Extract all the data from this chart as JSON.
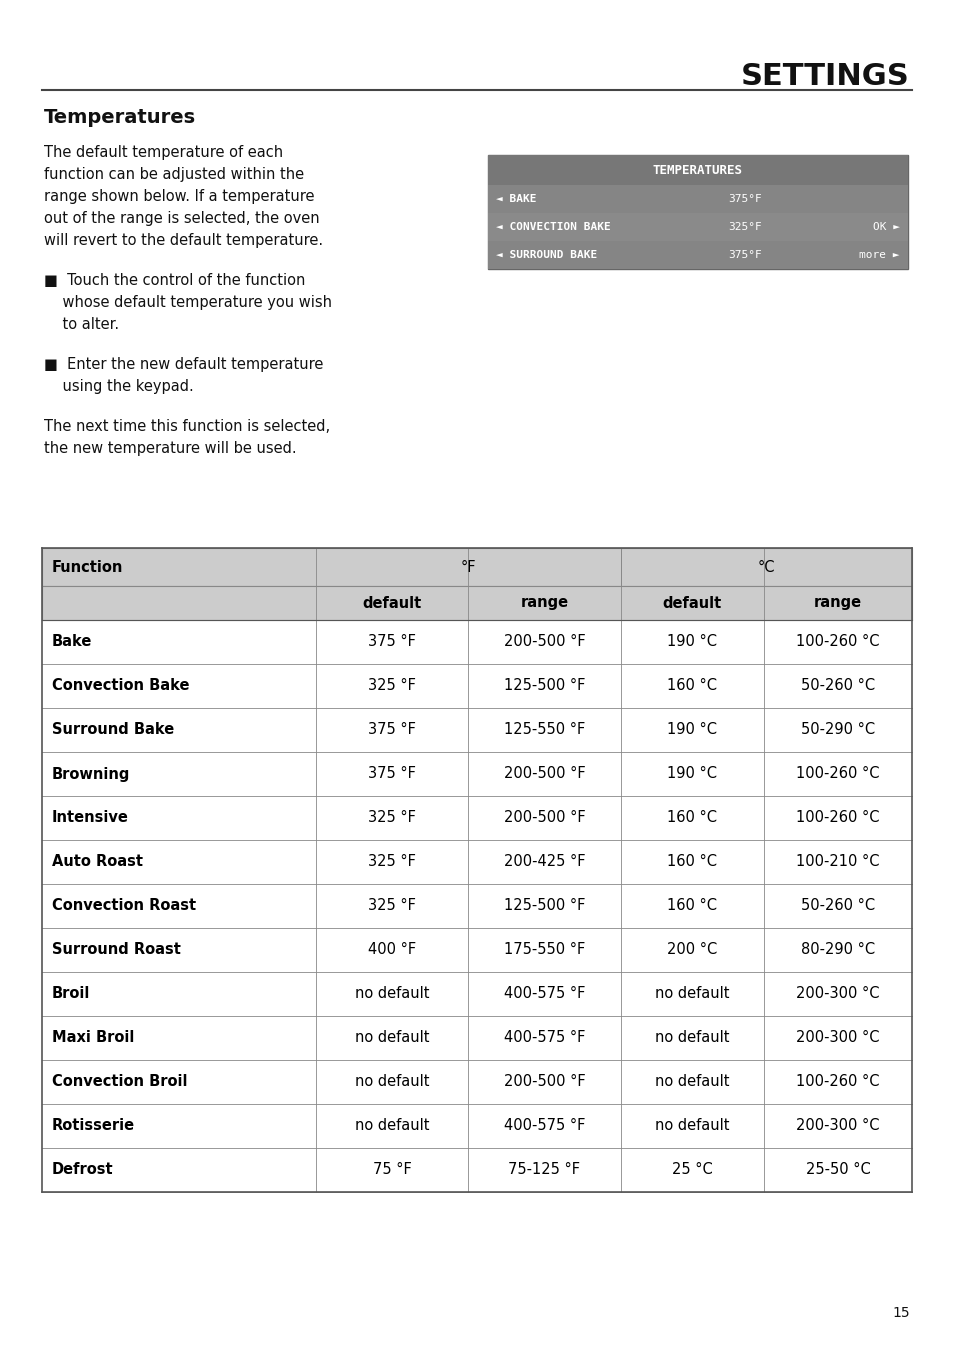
{
  "page_bg": "#ffffff",
  "title": "SETTINGS",
  "section_title": "Temperatures",
  "para1_lines": [
    "The default temperature of each",
    "function can be adjusted within the",
    "range shown below. If a temperature",
    "out of the range is selected, the oven",
    "will revert to the default temperature."
  ],
  "bullet1_lines": [
    "■  Touch the control of the function",
    "    whose default temperature you wish",
    "    to alter."
  ],
  "bullet2_lines": [
    "■  Enter the new default temperature",
    "    using the keypad."
  ],
  "para2_lines": [
    "The next time this function is selected,",
    "the new temperature will be used."
  ],
  "lcd_bg": "#8a8a8a",
  "lcd_title_bg": "#777777",
  "lcd_title": "TEMPERATURES",
  "lcd_rows": [
    [
      "◄ BAKE",
      "375°F",
      ""
    ],
    [
      "◄ CONVECTION BAKE",
      "325°F",
      "OK ►"
    ],
    [
      "◄ SURROUND BAKE",
      "375°F",
      "more ►"
    ]
  ],
  "lcd_row_bgs": [
    "#858585",
    "#8a8a8a",
    "#858585"
  ],
  "table_header_bg": "#cccccc",
  "table_rows": [
    [
      "Bake",
      "375 °F",
      "200-500 °F",
      "190 °C",
      "100-260 °C"
    ],
    [
      "Convection Bake",
      "325 °F",
      "125-500 °F",
      "160 °C",
      "50-260 °C"
    ],
    [
      "Surround Bake",
      "375 °F",
      "125-550 °F",
      "190 °C",
      "50-290 °C"
    ],
    [
      "Browning",
      "375 °F",
      "200-500 °F",
      "190 °C",
      "100-260 °C"
    ],
    [
      "Intensive",
      "325 °F",
      "200-500 °F",
      "160 °C",
      "100-260 °C"
    ],
    [
      "Auto Roast",
      "325 °F",
      "200-425 °F",
      "160 °C",
      "100-210 °C"
    ],
    [
      "Convection Roast",
      "325 °F",
      "125-500 °F",
      "160 °C",
      "50-260 °C"
    ],
    [
      "Surround Roast",
      "400 °F",
      "175-550 °F",
      "200 °C",
      "80-290 °C"
    ],
    [
      "Broil",
      "no default",
      "400-575 °F",
      "no default",
      "200-300 °C"
    ],
    [
      "Maxi Broil",
      "no default",
      "400-575 °F",
      "no default",
      "200-300 °C"
    ],
    [
      "Convection Broil",
      "no default",
      "200-500 °F",
      "no default",
      "100-260 °C"
    ],
    [
      "Rotisserie",
      "no default",
      "400-575 °F",
      "no default",
      "200-300 °C"
    ],
    [
      "Defrost",
      "75 °F",
      "75-125 °F",
      "25 °C",
      "25-50 °C"
    ]
  ],
  "page_number": "15"
}
